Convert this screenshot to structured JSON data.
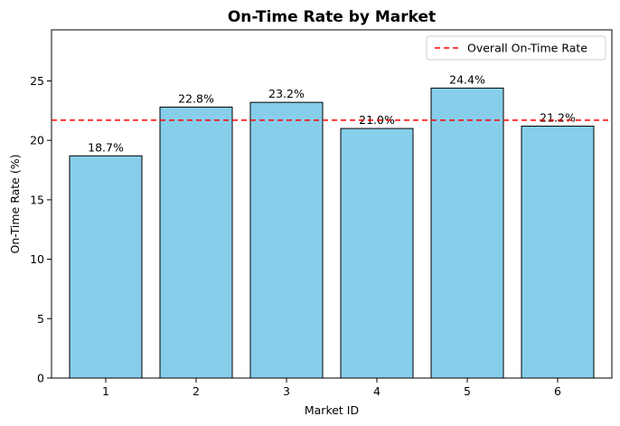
{
  "chart_data": {
    "type": "bar",
    "title": "On-Time Rate by Market",
    "xlabel": "Market ID",
    "ylabel": "On-Time Rate (%)",
    "categories": [
      "1",
      "2",
      "3",
      "4",
      "5",
      "6"
    ],
    "values": [
      18.7,
      22.8,
      23.2,
      21.0,
      24.4,
      21.2
    ],
    "data_labels": [
      "18.7%",
      "22.8%",
      "23.2%",
      "21.0%",
      "24.4%",
      "21.2%"
    ],
    "ylim": [
      0,
      29.3
    ],
    "yticks": [
      0,
      5,
      10,
      15,
      20,
      25
    ],
    "reference_line": {
      "label": "Overall On-Time Rate",
      "value": 21.7,
      "color": "#ff0000",
      "style": "dashed"
    },
    "bar_color": "#87ceeb",
    "bar_edge_color": "#000000",
    "grid": false,
    "legend_position": "top-right"
  }
}
